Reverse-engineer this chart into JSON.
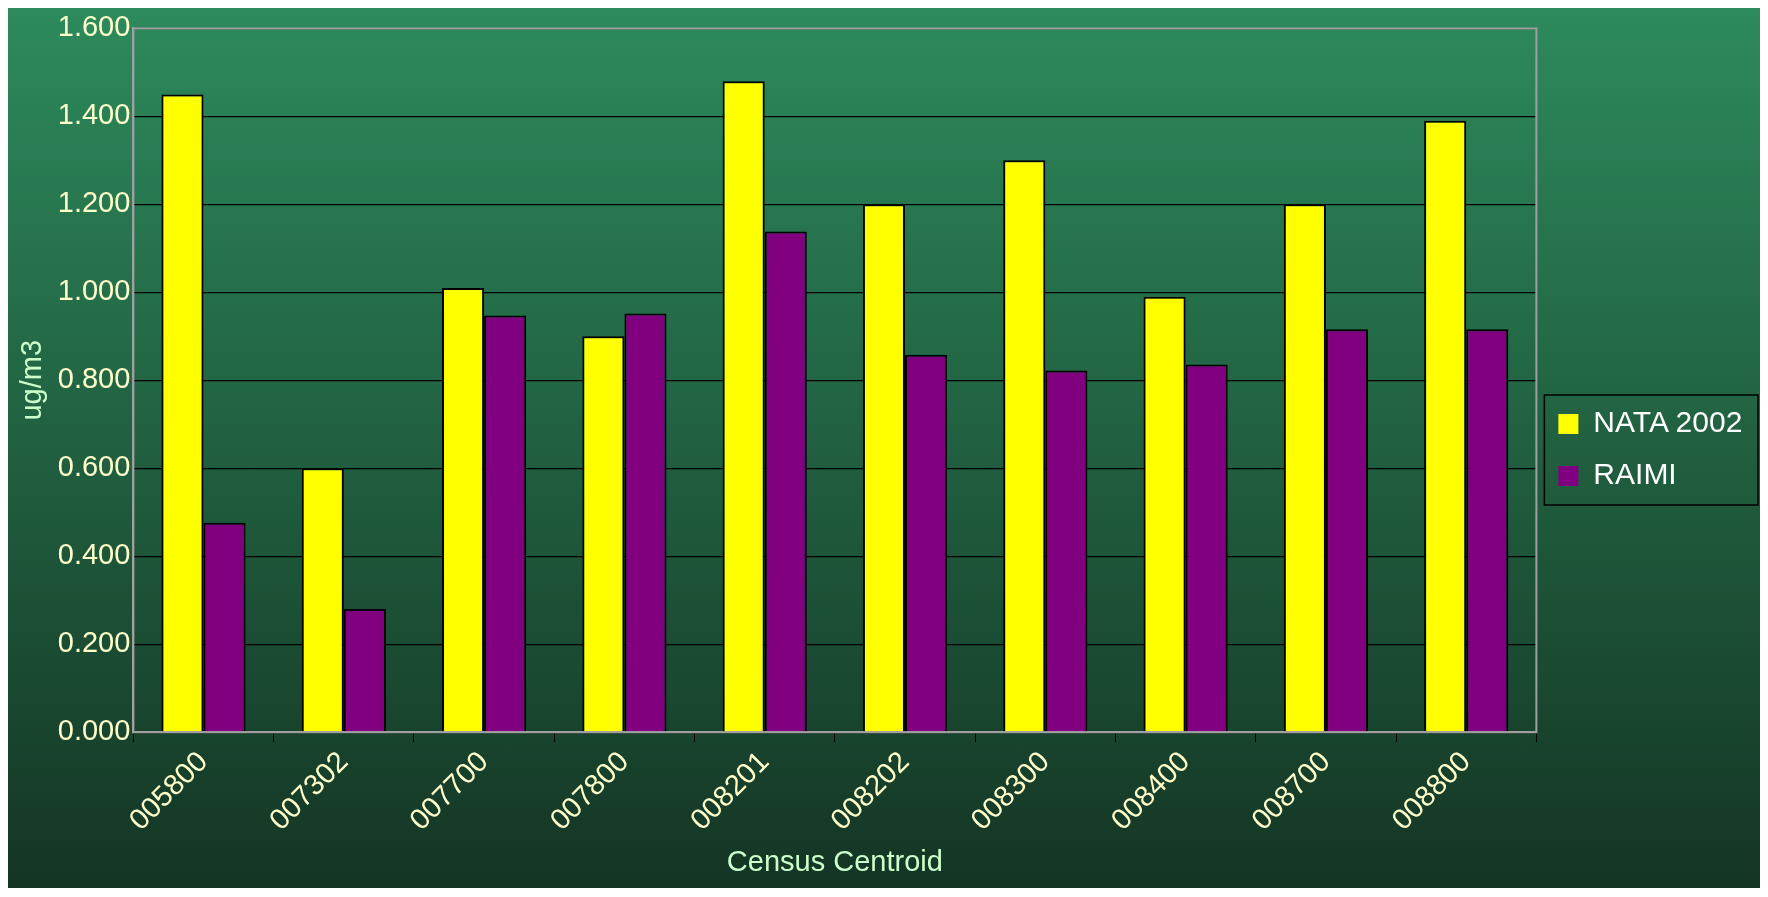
{
  "chart_data": {
    "type": "bar",
    "xlabel": "Census Centroid",
    "ylabel": "ug/m3",
    "categories": [
      "005800",
      "007302",
      "007700",
      "007800",
      "008201",
      "008202",
      "008300",
      "008400",
      "008700",
      "008800"
    ],
    "series": [
      {
        "name": "NATA 2002",
        "color": "#ffff00",
        "values": [
          1.45,
          0.6,
          1.01,
          0.9,
          1.48,
          1.2,
          1.3,
          0.99,
          1.2,
          1.39
        ]
      },
      {
        "name": "RAIMI",
        "color": "#800080",
        "values": [
          0.476,
          0.28,
          0.947,
          0.952,
          1.138,
          0.858,
          0.822,
          0.836,
          0.916,
          0.916
        ]
      }
    ],
    "ylim": [
      0,
      1.6
    ],
    "yticks": [
      {
        "value": 0,
        "label": "0.000"
      },
      {
        "value": 0.2,
        "label": "0.200"
      },
      {
        "value": 0.4,
        "label": "0.400"
      },
      {
        "value": 0.6,
        "label": "0.600"
      },
      {
        "value": 0.8,
        "label": "0.800"
      },
      {
        "value": 1,
        "label": "1.000"
      },
      {
        "value": 1.2,
        "label": "1.200"
      },
      {
        "value": 1.4,
        "label": "1.400"
      },
      {
        "value": 1.6,
        "label": "1.600"
      }
    ],
    "grid": "y",
    "legend": "right"
  }
}
